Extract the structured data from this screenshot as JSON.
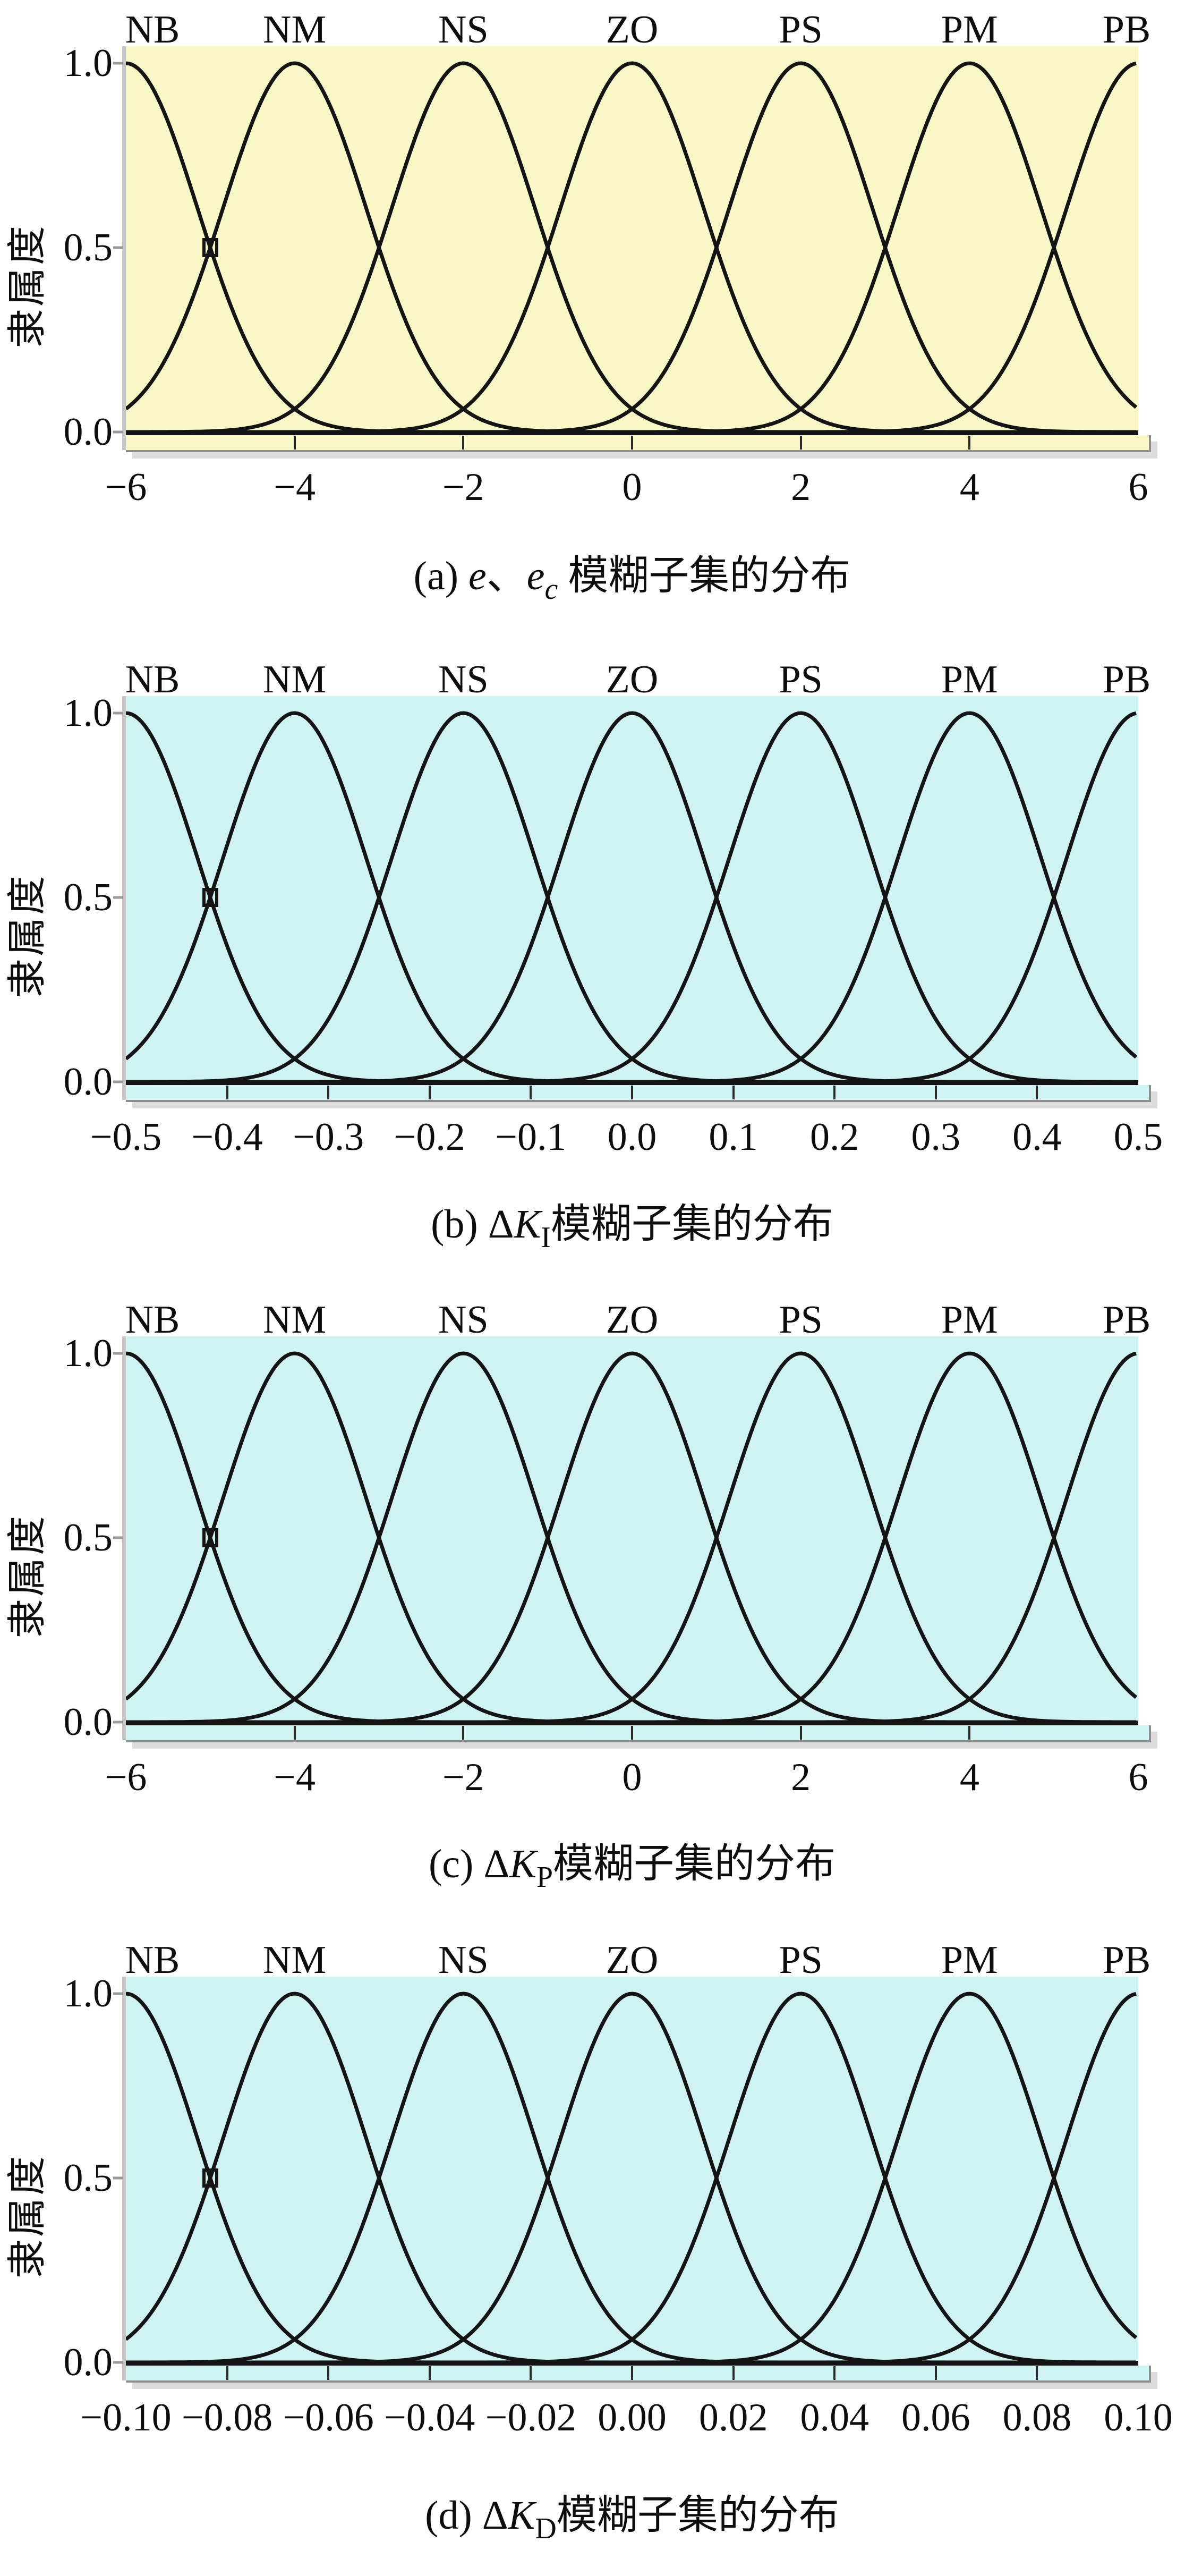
{
  "figure": {
    "ylabel": "隶属度",
    "y_ticks": [
      "1.0",
      "0.5",
      "0.0"
    ],
    "mf_labels": [
      "NB",
      "NM",
      "NS",
      "ZO",
      "PS",
      "PM",
      "PB"
    ],
    "colors": {
      "panel_a_bg": "#f8f7c5",
      "panel_bcd_bg": "#cff2f2",
      "curve": "#141414",
      "axis_gray": "#c6c6c6",
      "strip_border": "#8e8e8e",
      "strip_shadow": "#dcdcdc",
      "tick_dash": "#9a9a9a"
    }
  },
  "panels": [
    {
      "id": "a",
      "bg": "#f8f7c5",
      "x_tick_labels": [
        "−6",
        "−4",
        "−2",
        "0",
        "2",
        "4",
        "6"
      ],
      "caption": [
        {
          "t": "(a) "
        },
        {
          "t": "e",
          "i": true
        },
        {
          "t": "、"
        },
        {
          "t": "e",
          "i": true
        },
        {
          "t": "c",
          "i": true,
          "sub": true
        },
        {
          "t": " 模糊子集的分布"
        }
      ]
    },
    {
      "id": "b",
      "bg": "#cff2f2",
      "x_tick_labels": [
        "−0.5",
        "−0.4",
        "−0.3",
        "−0.2",
        "−0.1",
        "0.0",
        "0.1",
        "0.2",
        "0.3",
        "0.4",
        "0.5"
      ],
      "caption": [
        {
          "t": "(b) "
        },
        {
          "t": "Δ"
        },
        {
          "t": "K",
          "i": true
        },
        {
          "t": "I",
          "sub": true
        },
        {
          "t": "模糊子集的分布"
        }
      ]
    },
    {
      "id": "c",
      "bg": "#cff2f2",
      "x_tick_labels": [
        "−6",
        "−4",
        "−2",
        "0",
        "2",
        "4",
        "6"
      ],
      "caption": [
        {
          "t": "(c) "
        },
        {
          "t": "Δ"
        },
        {
          "t": "K",
          "i": true
        },
        {
          "t": "P",
          "sub": true
        },
        {
          "t": "模糊子集的分布"
        }
      ]
    },
    {
      "id": "d",
      "bg": "#cff2f2",
      "x_tick_labels": [
        "−0.10",
        "−0.08",
        "−0.06",
        "−0.04",
        "−0.02",
        "0.00",
        "0.02",
        "0.04",
        "0.06",
        "0.08",
        "0.10"
      ],
      "caption": [
        {
          "t": "(d) "
        },
        {
          "t": "Δ"
        },
        {
          "t": "K",
          "i": true
        },
        {
          "t": "D",
          "sub": true
        },
        {
          "t": "模糊子集的分布"
        }
      ]
    }
  ],
  "chart_data": [
    {
      "panel": "a",
      "type": "line",
      "title": "(a) e、ec 模糊子集的分布",
      "variables": [
        "e",
        "ec"
      ],
      "curve_shape": "gaussian",
      "x_range": [
        -6,
        6
      ],
      "y_range": [
        0,
        1.05
      ],
      "x_ticks": [
        -6,
        -4,
        -2,
        0,
        2,
        4,
        6
      ],
      "y_ticks": [
        0.0,
        0.5,
        1.0
      ],
      "ylabel": "隶属度",
      "sigma": 0.8493,
      "peak_value": 1.0,
      "adjacent_crossing_level": 0.5,
      "series": [
        {
          "name": "NB",
          "center": -6
        },
        {
          "name": "NM",
          "center": -4
        },
        {
          "name": "NS",
          "center": -2
        },
        {
          "name": "ZO",
          "center": 0
        },
        {
          "name": "PS",
          "center": 2
        },
        {
          "name": "PM",
          "center": 4
        },
        {
          "name": "PB",
          "center": 6
        }
      ],
      "marker": {
        "shape": "open-rect",
        "x": -5,
        "y": 0.5
      },
      "grid": false,
      "legend": "labels above plot"
    },
    {
      "panel": "b",
      "type": "line",
      "title": "(b) ΔKI模糊子集的分布",
      "variables": [
        "ΔKI"
      ],
      "curve_shape": "gaussian",
      "x_range": [
        -0.5,
        0.5
      ],
      "y_range": [
        0,
        1.05
      ],
      "x_ticks": [
        -0.5,
        -0.4,
        -0.3,
        -0.2,
        -0.1,
        0.0,
        0.1,
        0.2,
        0.3,
        0.4,
        0.5
      ],
      "y_ticks": [
        0.0,
        0.5,
        1.0
      ],
      "ylabel": "隶属度",
      "sigma": 0.0708,
      "peak_value": 1.0,
      "adjacent_crossing_level": 0.5,
      "series": [
        {
          "name": "NB",
          "center": -0.5
        },
        {
          "name": "NM",
          "center": -0.3333
        },
        {
          "name": "NS",
          "center": -0.1667
        },
        {
          "name": "ZO",
          "center": 0
        },
        {
          "name": "PS",
          "center": 0.1667
        },
        {
          "name": "PM",
          "center": 0.3333
        },
        {
          "name": "PB",
          "center": 0.5
        }
      ],
      "marker": {
        "shape": "open-rect",
        "x": -0.4167,
        "y": 0.5
      },
      "grid": false,
      "legend": "labels above plot"
    },
    {
      "panel": "c",
      "type": "line",
      "title": "(c) ΔKP模糊子集的分布",
      "variables": [
        "ΔKP"
      ],
      "curve_shape": "gaussian",
      "x_range": [
        -6,
        6
      ],
      "y_range": [
        0,
        1.05
      ],
      "x_ticks": [
        -6,
        -4,
        -2,
        0,
        2,
        4,
        6
      ],
      "y_ticks": [
        0.0,
        0.5,
        1.0
      ],
      "ylabel": "隶属度",
      "sigma": 0.8493,
      "peak_value": 1.0,
      "adjacent_crossing_level": 0.5,
      "series": [
        {
          "name": "NB",
          "center": -6
        },
        {
          "name": "NM",
          "center": -4
        },
        {
          "name": "NS",
          "center": -2
        },
        {
          "name": "ZO",
          "center": 0
        },
        {
          "name": "PS",
          "center": 2
        },
        {
          "name": "PM",
          "center": 4
        },
        {
          "name": "PB",
          "center": 6
        }
      ],
      "marker": {
        "shape": "open-rect",
        "x": -5,
        "y": 0.5
      },
      "grid": false,
      "legend": "labels above plot"
    },
    {
      "panel": "d",
      "type": "line",
      "title": "(d) ΔKD模糊子集的分布",
      "variables": [
        "ΔKD"
      ],
      "curve_shape": "gaussian",
      "x_range": [
        -0.1,
        0.1
      ],
      "y_range": [
        0,
        1.05
      ],
      "x_ticks": [
        -0.1,
        -0.08,
        -0.06,
        -0.04,
        -0.02,
        0.0,
        0.02,
        0.04,
        0.06,
        0.08,
        0.1
      ],
      "y_ticks": [
        0.0,
        0.5,
        1.0
      ],
      "ylabel": "隶属度",
      "sigma": 0.014156,
      "peak_value": 1.0,
      "adjacent_crossing_level": 0.5,
      "series": [
        {
          "name": "NB",
          "center": -0.1
        },
        {
          "name": "NM",
          "center": -0.06667
        },
        {
          "name": "NS",
          "center": -0.03333
        },
        {
          "name": "ZO",
          "center": 0
        },
        {
          "name": "PS",
          "center": 0.03333
        },
        {
          "name": "PM",
          "center": 0.06667
        },
        {
          "name": "PB",
          "center": 0.1
        }
      ],
      "marker": {
        "shape": "open-rect",
        "x": -0.08333,
        "y": 0.5
      },
      "grid": false,
      "legend": "labels above plot"
    }
  ]
}
